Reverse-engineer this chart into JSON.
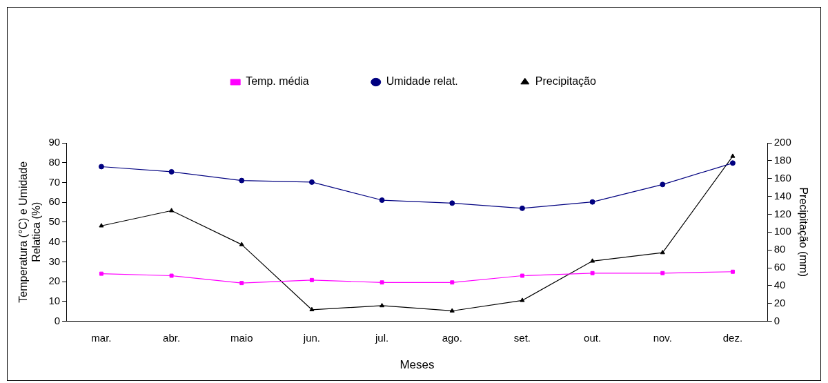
{
  "chart_data": {
    "type": "line",
    "xlabel": "Meses",
    "ylabel": "Temperatura (°C) e Umidade\nRelatica (%)",
    "y2label": "Precipitação (mm)",
    "categories": [
      "mar.",
      "abr.",
      "maio",
      "jun.",
      "jul.",
      "ago.",
      "set.",
      "out.",
      "nov.",
      "dez."
    ],
    "series": [
      {
        "name": "Temp. média",
        "color": "#ff00ff",
        "marker": "square",
        "values": [
          24,
          23,
          19.3,
          20.8,
          19.6,
          19.6,
          23,
          24.3,
          24.3,
          25
        ]
      },
      {
        "name": "Umidade relat.",
        "color": "#000080",
        "marker": "circle",
        "values": [
          78,
          75.4,
          71,
          70.2,
          61.1,
          59.6,
          57,
          60.2,
          69,
          79.8
        ]
      },
      {
        "name": "Precipitação",
        "color": "#000000",
        "marker": "triangle",
        "axis": "y2",
        "values": [
          107,
          124,
          86,
          13,
          17.5,
          11.7,
          23.4,
          67.5,
          77,
          185
        ]
      }
    ],
    "ylim": [
      0,
      90
    ],
    "yticks": [
      0,
      10,
      20,
      30,
      40,
      50,
      60,
      70,
      80,
      90
    ],
    "y2lim": [
      0,
      200
    ],
    "y2ticks": [
      0,
      20,
      40,
      60,
      80,
      100,
      120,
      140,
      160,
      180,
      200
    ],
    "grid": false,
    "legend": "top",
    "line_style": "solid"
  }
}
